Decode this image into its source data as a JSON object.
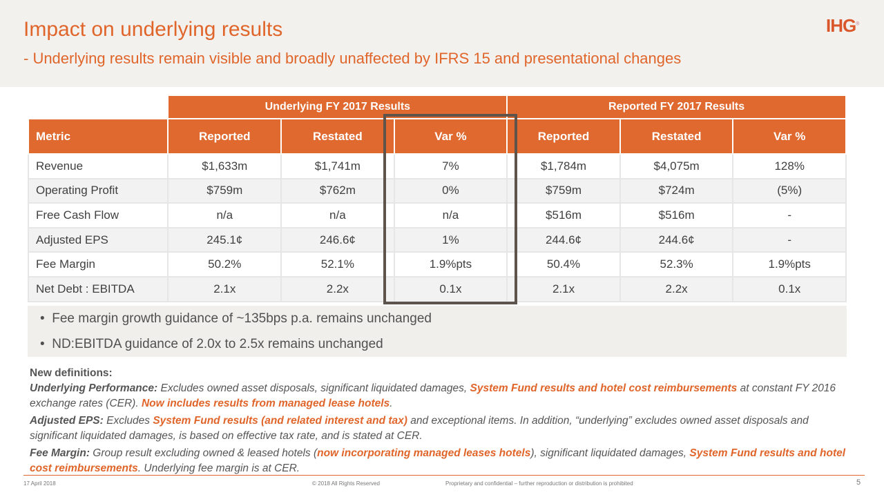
{
  "header": {
    "title": "Impact on underlying results",
    "subtitle": "- Underlying results remain visible and broadly unaffected by IFRS 15 and presentational changes",
    "logo": "IHG"
  },
  "table": {
    "groups": [
      "Underlying FY 2017 Results",
      "Reported FY 2017 Results"
    ],
    "columns": [
      "Metric",
      "Reported",
      "Restated",
      "Var %",
      "Reported",
      "Restated",
      "Var %"
    ],
    "rows": [
      [
        "Revenue",
        "$1,633m",
        "$1,741m",
        "7%",
        "$1,784m",
        "$4,075m",
        "128%"
      ],
      [
        "Operating Profit",
        "$759m",
        "$762m",
        "0%",
        "$759m",
        "$724m",
        "(5%)"
      ],
      [
        "Free Cash Flow",
        "n/a",
        "n/a",
        "n/a",
        "$516m",
        "$516m",
        "-"
      ],
      [
        "Adjusted EPS",
        "245.1¢",
        "246.6¢",
        "1%",
        "244.6¢",
        "244.6¢",
        "-"
      ],
      [
        "Fee Margin",
        "50.2%",
        "52.1%",
        "1.9%pts",
        "50.4%",
        "52.3%",
        "1.9%pts"
      ],
      [
        "Net Debt : EBITDA",
        "2.1x",
        "2.2x",
        "0.1x",
        "2.1x",
        "2.2x",
        "0.1x"
      ]
    ]
  },
  "bullets": [
    "Fee margin growth guidance of ~135bps p.a. remains unchanged",
    "ND:EBITDA guidance of 2.0x to 2.5x remains unchanged"
  ],
  "definitions": {
    "heading": "New definitions:",
    "up": {
      "label": "Underlying Performance:",
      "t1": " Excludes owned asset disposals, significant liquidated damages, ",
      "h1": "System Fund results and hotel cost reimbursements",
      "t2": " at constant FY 2016 exchange rates (CER). ",
      "h2": "Now includes results from managed lease hotels",
      "t3": "."
    },
    "eps": {
      "label": "Adjusted EPS:",
      "t1": " Excludes ",
      "h1": "System Fund results (and related interest and tax)",
      "t2": " and exceptional items. In addition, “underlying” excludes owned asset disposals and significant liquidated damages, is based on effective tax rate, and is stated at CER."
    },
    "fm": {
      "label": "Fee Margin:",
      "t1": " Group result excluding owned & leased hotels (",
      "h1": "now incorporating managed leases hotels",
      "t2": "), significant liquidated damages, ",
      "h2": "System Fund results and hotel cost reimbursements",
      "t3": ". Underlying fee margin is at CER."
    }
  },
  "footer": {
    "date": "17 April 2018",
    "copyright": "© 2018 All Rights Reserved",
    "confidential": "Proprietary and confidential – further reproduction or distribution is prohibited",
    "page": "5"
  },
  "colors": {
    "accent": "#e0692f",
    "highlight_box": "#5e544c"
  }
}
